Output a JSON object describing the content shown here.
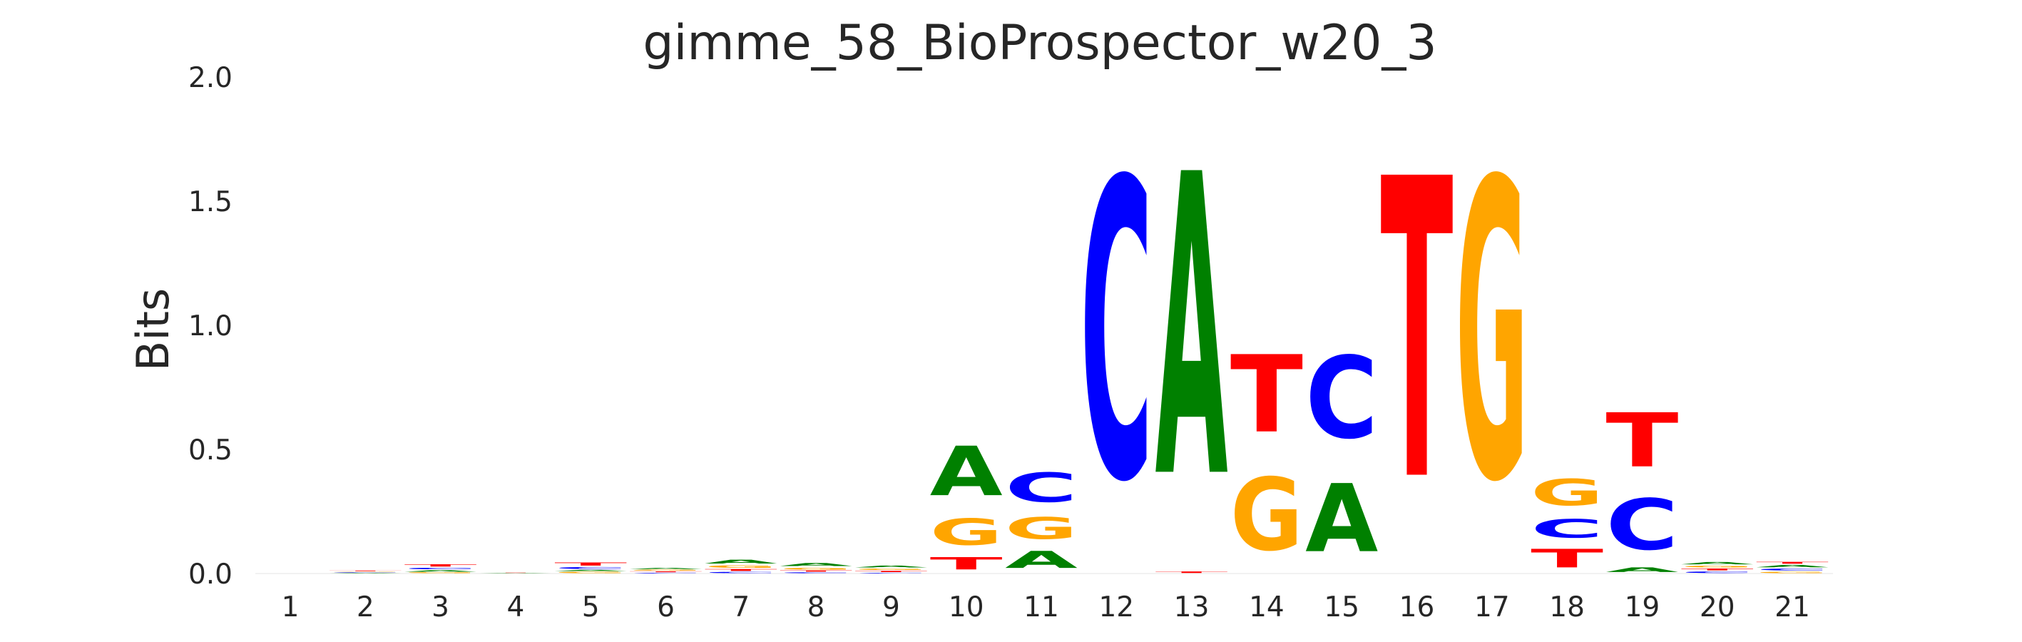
{
  "chart_data": {
    "type": "sequence-logo",
    "title": "gimme_58_BioProspector_w20_3",
    "xlabel": "",
    "ylabel": "Bits",
    "ylim": [
      0,
      2.0
    ],
    "yticks": [
      "0.0",
      "0.5",
      "1.0",
      "1.5",
      "2.0"
    ],
    "grid": false,
    "colors": {
      "A": "#008000",
      "C": "#0000ff",
      "G": "#ffa500",
      "T": "#ff0000"
    },
    "positions": [
      {
        "label": "1",
        "stack": []
      },
      {
        "label": "2",
        "stack": [
          [
            "A",
            0.003
          ],
          [
            "C",
            0.003
          ],
          [
            "G",
            0.003
          ],
          [
            "T",
            0.004
          ]
        ]
      },
      {
        "label": "3",
        "stack": [
          [
            "G",
            0.005
          ],
          [
            "A",
            0.01
          ],
          [
            "C",
            0.01
          ],
          [
            "T",
            0.015
          ]
        ]
      },
      {
        "label": "4",
        "stack": [
          [
            "A",
            0.002
          ],
          [
            "T",
            0.002
          ]
        ]
      },
      {
        "label": "5",
        "stack": [
          [
            "G",
            0.008
          ],
          [
            "A",
            0.008
          ],
          [
            "C",
            0.012
          ],
          [
            "T",
            0.02
          ]
        ]
      },
      {
        "label": "6",
        "stack": [
          [
            "C",
            0.004
          ],
          [
            "T",
            0.006
          ],
          [
            "G",
            0.006
          ],
          [
            "A",
            0.008
          ]
        ]
      },
      {
        "label": "7",
        "stack": [
          [
            "C",
            0.008
          ],
          [
            "T",
            0.012
          ],
          [
            "G",
            0.015
          ],
          [
            "A",
            0.025
          ]
        ]
      },
      {
        "label": "8",
        "stack": [
          [
            "C",
            0.006
          ],
          [
            "T",
            0.008
          ],
          [
            "G",
            0.012
          ],
          [
            "A",
            0.02
          ]
        ]
      },
      {
        "label": "9",
        "stack": [
          [
            "C",
            0.004
          ],
          [
            "T",
            0.008
          ],
          [
            "G",
            0.01
          ],
          [
            "A",
            0.012
          ]
        ]
      },
      {
        "label": "10",
        "stack": [
          [
            "T",
            0.08
          ],
          [
            "G",
            0.17
          ],
          [
            "A",
            0.32
          ]
        ]
      },
      {
        "label": "11",
        "stack": [
          [
            "A",
            0.11
          ],
          [
            "G",
            0.14
          ],
          [
            "C",
            0.19
          ]
        ]
      },
      {
        "label": "12",
        "stack": [
          [
            "C",
            1.93
          ]
        ]
      },
      {
        "label": "13",
        "stack": [
          [
            "T",
            0.01
          ],
          [
            "A",
            1.95
          ]
        ]
      },
      {
        "label": "14",
        "stack": [
          [
            "G",
            0.47
          ],
          [
            "T",
            0.5
          ]
        ]
      },
      {
        "label": "15",
        "stack": [
          [
            "A",
            0.44
          ],
          [
            "C",
            0.53
          ]
        ]
      },
      {
        "label": "16",
        "stack": [
          [
            "T",
            1.94
          ]
        ]
      },
      {
        "label": "17",
        "stack": [
          [
            "G",
            1.93
          ]
        ]
      },
      {
        "label": "18",
        "stack": [
          [
            "T",
            0.12
          ],
          [
            "C",
            0.12
          ],
          [
            "G",
            0.17
          ]
        ]
      },
      {
        "label": "19",
        "stack": [
          [
            "A",
            0.03
          ],
          [
            "C",
            0.33
          ],
          [
            "T",
            0.35
          ]
        ]
      },
      {
        "label": "20",
        "stack": [
          [
            "C",
            0.01
          ],
          [
            "T",
            0.012
          ],
          [
            "G",
            0.012
          ],
          [
            "A",
            0.015
          ]
        ]
      },
      {
        "label": "21",
        "stack": [
          [
            "G",
            0.01
          ],
          [
            "C",
            0.012
          ],
          [
            "A",
            0.015
          ],
          [
            "T",
            0.012
          ]
        ]
      }
    ]
  }
}
